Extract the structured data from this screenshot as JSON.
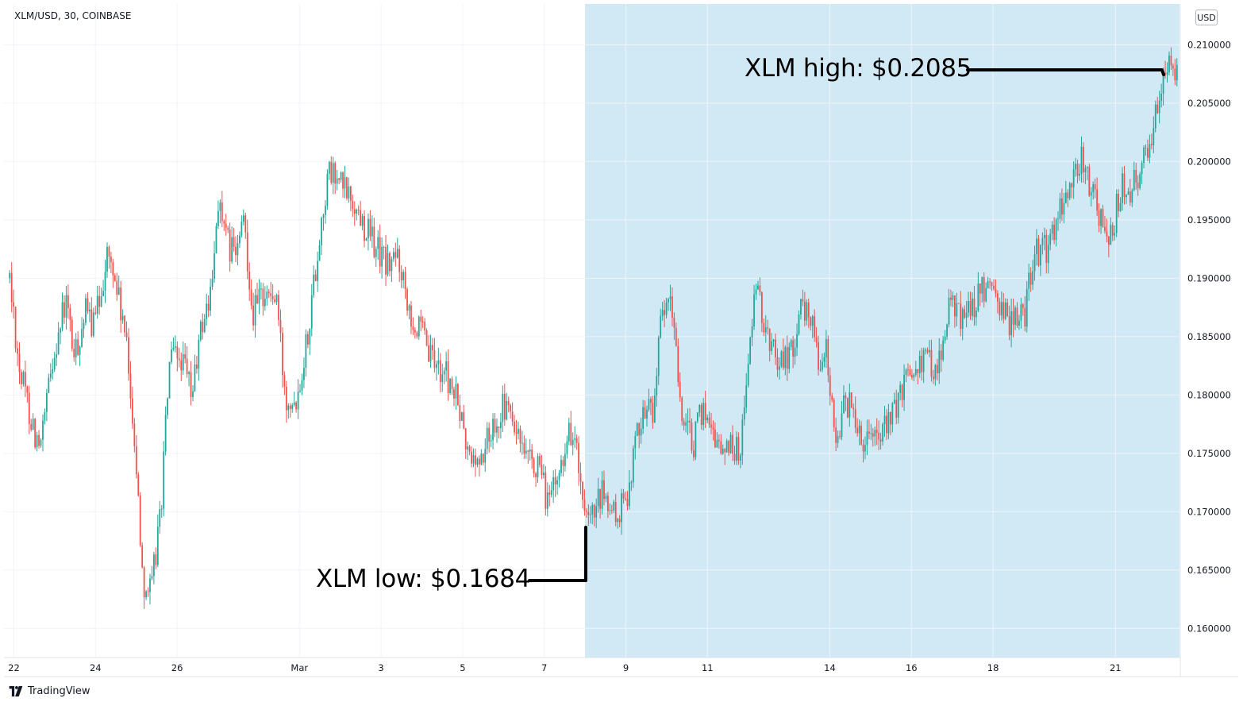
{
  "header": {
    "symbol": "XLM/USD, 30, COINBASE",
    "currency": "USD"
  },
  "brand": {
    "name": "TradingView"
  },
  "annotations": {
    "high": "XLM high: $0.2085",
    "low": "XLM low: $0.1684"
  },
  "colors": {
    "up": "#26a69a",
    "down": "#ef5350",
    "highlight": "#d1e9f5",
    "annotation": "#000000",
    "grid": "#f0f3fa"
  },
  "chart_data": {
    "type": "candlestick",
    "title": "XLM/USD, 30, COINBASE",
    "ylim": [
      0.1575,
      0.2135
    ],
    "y_ticks": [
      "0.210000",
      "0.205000",
      "0.200000",
      "0.195000",
      "0.190000",
      "0.185000",
      "0.180000",
      "0.175000",
      "0.170000",
      "0.165000",
      "0.160000"
    ],
    "x_ticks": [
      "22",
      "24",
      "26",
      "Mar",
      "3",
      "5",
      "7",
      "9",
      "11",
      "14",
      "16",
      "18",
      "21"
    ],
    "highlight_range": [
      "7 Mar",
      "22 Mar"
    ],
    "high_value": 0.2085,
    "low_value": 0.1684,
    "price_path": [
      [
        0,
        0.19
      ],
      [
        0.5,
        0.182
      ],
      [
        1.5,
        0.175
      ],
      [
        2.2,
        0.184
      ],
      [
        2.8,
        0.188
      ],
      [
        3.2,
        0.183
      ],
      [
        3.7,
        0.187
      ],
      [
        4.2,
        0.186
      ],
      [
        4.8,
        0.192
      ],
      [
        5.2,
        0.19
      ],
      [
        5.7,
        0.185
      ],
      [
        6.1,
        0.178
      ],
      [
        6.6,
        0.164
      ],
      [
        7.0,
        0.163
      ],
      [
        7.5,
        0.171
      ],
      [
        7.9,
        0.183
      ],
      [
        8.5,
        0.183
      ],
      [
        9.0,
        0.18
      ],
      [
        9.5,
        0.186
      ],
      [
        10.0,
        0.189
      ],
      [
        10.3,
        0.197
      ],
      [
        10.7,
        0.193
      ],
      [
        11.2,
        0.192
      ],
      [
        11.6,
        0.195
      ],
      [
        12.0,
        0.187
      ],
      [
        12.6,
        0.189
      ],
      [
        13.2,
        0.188
      ],
      [
        13.6,
        0.18
      ],
      [
        14.2,
        0.18
      ],
      [
        14.7,
        0.185
      ],
      [
        15.2,
        0.192
      ],
      [
        15.5,
        0.196
      ],
      [
        15.8,
        0.199
      ],
      [
        16.4,
        0.198
      ],
      [
        16.8,
        0.197
      ],
      [
        17.4,
        0.195
      ],
      [
        18.0,
        0.193
      ],
      [
        18.7,
        0.191
      ],
      [
        19.2,
        0.192
      ],
      [
        19.6,
        0.189
      ],
      [
        20.0,
        0.186
      ],
      [
        20.4,
        0.185
      ],
      [
        20.8,
        0.183
      ],
      [
        21.5,
        0.182
      ],
      [
        22.2,
        0.179
      ],
      [
        22.6,
        0.175
      ],
      [
        23.2,
        0.174
      ],
      [
        24.0,
        0.178
      ],
      [
        24.5,
        0.179
      ],
      [
        25.0,
        0.177
      ],
      [
        25.5,
        0.174
      ],
      [
        26.0,
        0.174
      ],
      [
        26.6,
        0.171
      ],
      [
        27.0,
        0.172
      ],
      [
        27.6,
        0.177
      ],
      [
        28.0,
        0.176
      ],
      [
        28.3,
        0.17
      ],
      [
        28.6,
        0.1684
      ],
      [
        29.3,
        0.1715
      ],
      [
        29.9,
        0.1695
      ],
      [
        30.4,
        0.1705
      ],
      [
        31.2,
        0.1785
      ],
      [
        31.8,
        0.179
      ],
      [
        32.2,
        0.186
      ],
      [
        32.6,
        0.188
      ],
      [
        32.9,
        0.185
      ],
      [
        33.3,
        0.177
      ],
      [
        33.8,
        0.176
      ],
      [
        34.3,
        0.179
      ],
      [
        34.8,
        0.177
      ],
      [
        35.2,
        0.175
      ],
      [
        35.6,
        0.176
      ],
      [
        36.1,
        0.175
      ],
      [
        36.5,
        0.183
      ],
      [
        36.9,
        0.189
      ],
      [
        37.3,
        0.186
      ],
      [
        37.7,
        0.184
      ],
      [
        38.2,
        0.183
      ],
      [
        38.7,
        0.184
      ],
      [
        39.1,
        0.187
      ],
      [
        39.6,
        0.187
      ],
      [
        40.0,
        0.183
      ],
      [
        40.4,
        0.1835
      ],
      [
        40.8,
        0.176
      ],
      [
        41.2,
        0.179
      ],
      [
        41.7,
        0.179
      ],
      [
        42.2,
        0.176
      ],
      [
        42.6,
        0.178
      ],
      [
        43.0,
        0.176
      ],
      [
        43.5,
        0.178
      ],
      [
        43.9,
        0.179
      ],
      [
        44.4,
        0.182
      ],
      [
        44.8,
        0.183
      ],
      [
        45.3,
        0.183
      ],
      [
        45.7,
        0.1825
      ],
      [
        46.1,
        0.184
      ],
      [
        46.5,
        0.188
      ],
      [
        46.9,
        0.187
      ],
      [
        47.3,
        0.187
      ],
      [
        47.7,
        0.188
      ],
      [
        48.2,
        0.189
      ],
      [
        48.6,
        0.188
      ],
      [
        49.0,
        0.188
      ],
      [
        49.4,
        0.186
      ],
      [
        49.8,
        0.187
      ],
      [
        50.2,
        0.187
      ],
      [
        50.6,
        0.192
      ],
      [
        51.0,
        0.192
      ],
      [
        51.4,
        0.193
      ],
      [
        51.8,
        0.195
      ],
      [
        52.2,
        0.197
      ],
      [
        52.6,
        0.199
      ],
      [
        53.0,
        0.2
      ],
      [
        53.4,
        0.198
      ],
      [
        53.8,
        0.196
      ],
      [
        54.2,
        0.193
      ],
      [
        54.6,
        0.195
      ],
      [
        55.0,
        0.198
      ],
      [
        55.4,
        0.197
      ],
      [
        55.8,
        0.199
      ],
      [
        56.2,
        0.201
      ],
      [
        56.5,
        0.203
      ],
      [
        56.8,
        0.206
      ],
      [
        57.1,
        0.2085
      ],
      [
        57.5,
        0.207
      ],
      [
        57.7,
        0.207
      ]
    ]
  }
}
